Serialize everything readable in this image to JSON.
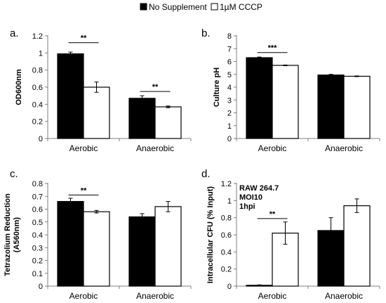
{
  "colors": {
    "no_supplement": "#000000",
    "cccp": "#ffffff",
    "outline": "#000000"
  },
  "legend": {
    "items": [
      {
        "label": "No Supplement",
        "swatch": "#000000"
      },
      {
        "label": "1µM CCCP",
        "swatch": "#ffffff"
      }
    ]
  },
  "chart_data": [
    {
      "panel_label": "a.",
      "type": "bar",
      "categories": [
        "Aerobic",
        "Anaerobic"
      ],
      "series": [
        {
          "name": "No Supplement",
          "values": [
            0.99,
            0.47
          ],
          "errors": [
            0.02,
            0.03
          ]
        },
        {
          "name": "1µM CCCP",
          "values": [
            0.6,
            0.37
          ],
          "errors": [
            0.06,
            0.01
          ]
        }
      ],
      "ylabel": "OD600nm",
      "ylim": [
        0,
        1.2
      ],
      "yticks": [
        0,
        0.2,
        0.4,
        0.6,
        0.8,
        1,
        1.2
      ],
      "ytick_labels": [
        "0",
        "0.2",
        "0.4",
        "0.6",
        "0.8",
        "1",
        "1.2"
      ],
      "significance": [
        {
          "category": "Aerobic",
          "label": "**",
          "y": 1.12
        },
        {
          "category": "Anaerobic",
          "label": "**",
          "y": 0.55
        }
      ]
    },
    {
      "panel_label": "b.",
      "type": "bar",
      "categories": [
        "Aerobic",
        "Anaerobic"
      ],
      "series": [
        {
          "name": "No Supplement",
          "values": [
            6.3,
            4.95
          ],
          "errors": [
            0.05,
            0.05
          ]
        },
        {
          "name": "1µM CCCP",
          "values": [
            5.7,
            4.85
          ],
          "errors": [
            0.03,
            0.03
          ]
        }
      ],
      "ylabel": "Culture pH",
      "ylim": [
        0,
        8
      ],
      "yticks": [
        0,
        1,
        2,
        3,
        4,
        5,
        6,
        7,
        8
      ],
      "ytick_labels": [
        "0",
        "1",
        "2",
        "3",
        "4",
        "5",
        "6",
        "7",
        "8"
      ],
      "significance": [
        {
          "category": "Aerobic",
          "label": "***",
          "y": 6.7
        }
      ]
    },
    {
      "panel_label": "c.",
      "type": "bar",
      "categories": [
        "Aerobic",
        "Anaerobic"
      ],
      "series": [
        {
          "name": "No Supplement",
          "values": [
            0.66,
            0.54
          ],
          "errors": [
            0.025,
            0.025
          ]
        },
        {
          "name": "1µM CCCP",
          "values": [
            0.58,
            0.62
          ],
          "errors": [
            0.01,
            0.04
          ]
        }
      ],
      "ylabel": "Tetrazolium Reduction (A560nm)",
      "ylabel_lines": [
        "Tetrazolium Reduction",
        "(A560nm)"
      ],
      "ylim": [
        0,
        0.8
      ],
      "yticks": [
        0,
        0.1,
        0.2,
        0.3,
        0.4,
        0.5,
        0.6,
        0.7,
        0.8
      ],
      "ytick_labels": [
        "0",
        "0.1",
        "0.2",
        "0.3",
        "0.4",
        "0.5",
        "0.6",
        "0.7",
        "0.8"
      ],
      "significance": [
        {
          "category": "Aerobic",
          "label": "**",
          "y": 0.71
        }
      ]
    },
    {
      "panel_label": "d.",
      "type": "bar",
      "categories": [
        "Aerobic",
        "Anaerobic"
      ],
      "series": [
        {
          "name": "No Supplement",
          "values": [
            0.01,
            0.65
          ],
          "errors": [
            0.005,
            0.15
          ]
        },
        {
          "name": "1µM CCCP",
          "values": [
            0.62,
            0.94
          ],
          "errors": [
            0.13,
            0.08
          ]
        }
      ],
      "ylabel": "Intracellular CFU (% Input)",
      "ylim": [
        0,
        1.2
      ],
      "yticks": [
        0,
        0.2,
        0.4,
        0.6,
        0.8,
        1,
        1.2
      ],
      "ytick_labels": [
        "0",
        "0.2",
        "0.4",
        "0.6",
        "0.8",
        "1",
        "1.2"
      ],
      "annotations": [
        "RAW 264.7",
        "MOI10",
        "1hpi"
      ],
      "significance": [
        {
          "category": "Aerobic",
          "label": "**",
          "y": 0.79
        }
      ]
    }
  ]
}
